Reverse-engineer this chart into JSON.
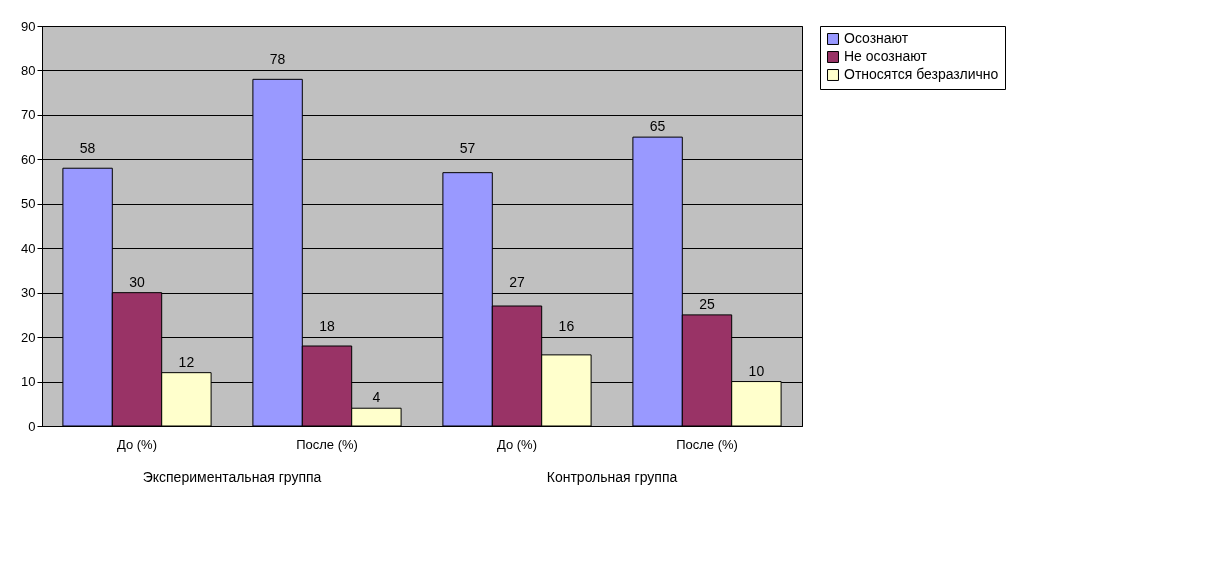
{
  "chart_data": {
    "type": "bar",
    "categories": [
      "До (%)",
      "После (%)",
      "До (%)",
      "После (%)"
    ],
    "series": [
      {
        "name": "Осознают",
        "color": "#9999ff",
        "values": [
          58,
          78,
          57,
          65
        ]
      },
      {
        "name": "Не осознают",
        "color": "#993366",
        "values": [
          30,
          18,
          27,
          25
        ]
      },
      {
        "name": "Относятся безразлично",
        "color": "#ffffcc",
        "values": [
          12,
          4,
          16,
          10
        ]
      }
    ],
    "annotations": [
      "Экспериментальная группа",
      "Контрольная группа"
    ],
    "ylim": [
      0,
      90
    ],
    "yticks": [
      0,
      10,
      20,
      30,
      40,
      50,
      60,
      70,
      80,
      90
    ],
    "grid": "y",
    "legend": "right",
    "data_labels": true
  }
}
